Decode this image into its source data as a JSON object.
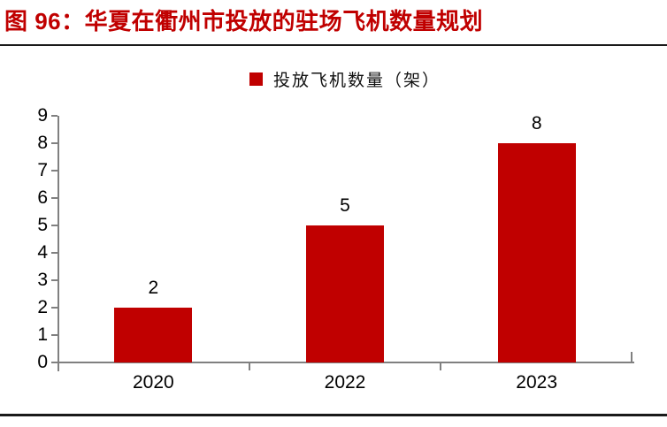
{
  "figure": {
    "title": "图 96：华夏在衢州市投放的驻场飞机数量规划"
  },
  "legend": {
    "label": "投放飞机数量（架）"
  },
  "colors": {
    "bar": "#C00000",
    "title_red": "#C00000",
    "axis_gray": "#808080",
    "divider_dark": "#1A1A1A"
  },
  "chart_data": {
    "type": "bar",
    "title": "图 96：华夏在衢州市投放的驻场飞机数量规划",
    "series_name": "投放飞机数量（架）",
    "categories": [
      "2020",
      "2022",
      "2023"
    ],
    "values": [
      2,
      5,
      8
    ],
    "data_labels": [
      "2",
      "5",
      "8"
    ],
    "xlabel": "",
    "ylabel": "",
    "ylim": [
      0,
      9
    ],
    "yticks": [
      "0",
      "1",
      "2",
      "3",
      "4",
      "5",
      "6",
      "7",
      "8",
      "9"
    ],
    "grid": false,
    "legend_position": "top-center",
    "bar_color": "#C00000"
  }
}
